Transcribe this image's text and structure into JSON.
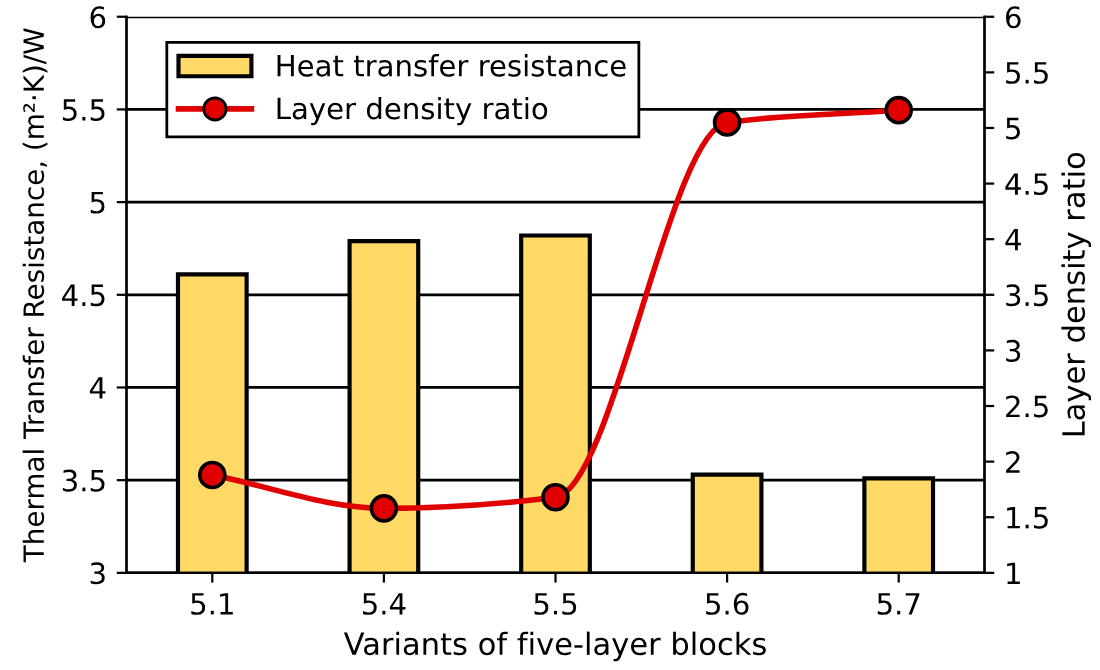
{
  "chart_data": {
    "type": "bar",
    "xlabel": "Variants of five-layer blocks",
    "ylabel": "Thermal Transfer Resistance, (m²·K)/W",
    "y2label": "Layer density ratio",
    "categories": [
      "5.1",
      "5.4",
      "5.5",
      "5.6",
      "5.7"
    ],
    "series": [
      {
        "name": "Heat transfer resistance",
        "color": "#ffd966",
        "values": [
          4.61,
          4.79,
          4.82,
          3.53,
          3.51
        ]
      },
      {
        "name": "Layer density ratio",
        "type": "line",
        "axis": "y2",
        "color": "#e00000",
        "marker": "circle",
        "line_style": "solid",
        "values": [
          1.88,
          1.58,
          1.68,
          5.05,
          5.16
        ]
      }
    ],
    "ylim": [
      3,
      6
    ],
    "yticks": [
      3,
      3.5,
      4,
      4.5,
      5,
      5.5,
      6
    ],
    "y2lim": [
      1,
      6
    ],
    "y2ticks": [
      1,
      1.5,
      2,
      2.5,
      3,
      3.5,
      4,
      4.5,
      5,
      5.5,
      6
    ],
    "grid": "y",
    "legend": "top left"
  }
}
